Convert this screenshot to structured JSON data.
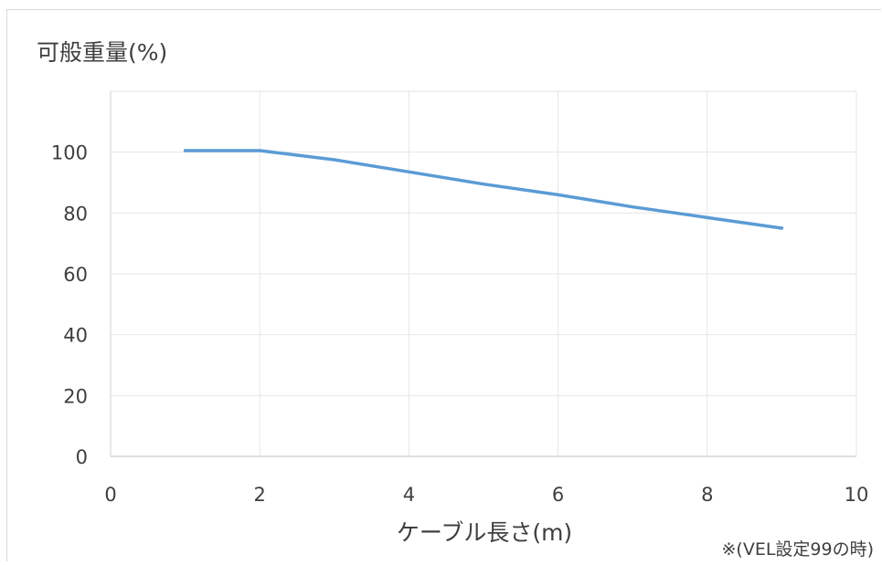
{
  "chart_data": {
    "type": "line",
    "ylabel": "可般重量(%)",
    "xlabel": "ケーブル長さ(m)",
    "annotation": "※(VEL設定99の時)",
    "xlim": [
      0,
      10
    ],
    "ylim": [
      0,
      120
    ],
    "x_ticks": [
      "0",
      "2",
      "4",
      "6",
      "8",
      "10"
    ],
    "y_ticks": [
      "0",
      "20",
      "40",
      "60",
      "80",
      "100"
    ],
    "grid": true,
    "legend": "none",
    "series": [
      {
        "color": "#5b9bd5",
        "points": [
          {
            "x": 1,
            "y": 100.5
          },
          {
            "x": 2,
            "y": 100.5
          },
          {
            "x": 3,
            "y": 97.5
          },
          {
            "x": 4,
            "y": 93.5
          },
          {
            "x": 5,
            "y": 89.5
          },
          {
            "x": 6,
            "y": 86
          },
          {
            "x": 7,
            "y": 82
          },
          {
            "x": 8,
            "y": 78.5
          },
          {
            "x": 9,
            "y": 75
          }
        ]
      }
    ]
  }
}
